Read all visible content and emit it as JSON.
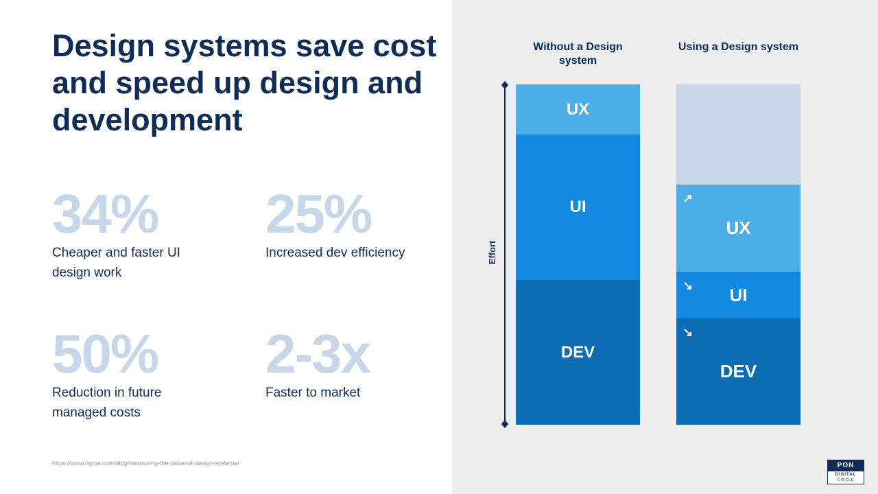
{
  "title": "Design systems save cost and speed up design and development",
  "stats": [
    {
      "value": "34%",
      "label": "Cheaper and faster UI design work"
    },
    {
      "value": "25%",
      "label": "Increased dev efficiency"
    },
    {
      "value": "50%",
      "label": "Reduction in future managed costs"
    },
    {
      "value": "2-3x",
      "label": "Faster to market"
    }
  ],
  "source": "https://www.figma.com/blog/measuring-the-value-of-design-systems/",
  "diagram": {
    "axis_label": "Effort",
    "columns": [
      {
        "heading": "Without a Design system",
        "segments": [
          {
            "label": "UX",
            "color": "#4eaee8"
          },
          {
            "label": "UI",
            "color": "#1189e0"
          },
          {
            "label": "DEV",
            "color": "#0c6cb4"
          }
        ]
      },
      {
        "heading": "Using a Design system",
        "segments": [
          {
            "label": "",
            "color": "#c8d7ea"
          },
          {
            "label": "UX",
            "color": "#4eaee8",
            "trend": "up"
          },
          {
            "label": "UI",
            "color": "#1189e0",
            "trend": "down"
          },
          {
            "label": "DEV",
            "color": "#0c6cb4",
            "trend": "down"
          }
        ]
      }
    ]
  },
  "logo": {
    "brand": "PON",
    "line1": "DIGITAL",
    "line2": "CIRCLE"
  },
  "colors": {
    "navy": "#0d2d58",
    "stat_gray": "#c8d6ea",
    "panel_bg": "#eeeeee"
  }
}
